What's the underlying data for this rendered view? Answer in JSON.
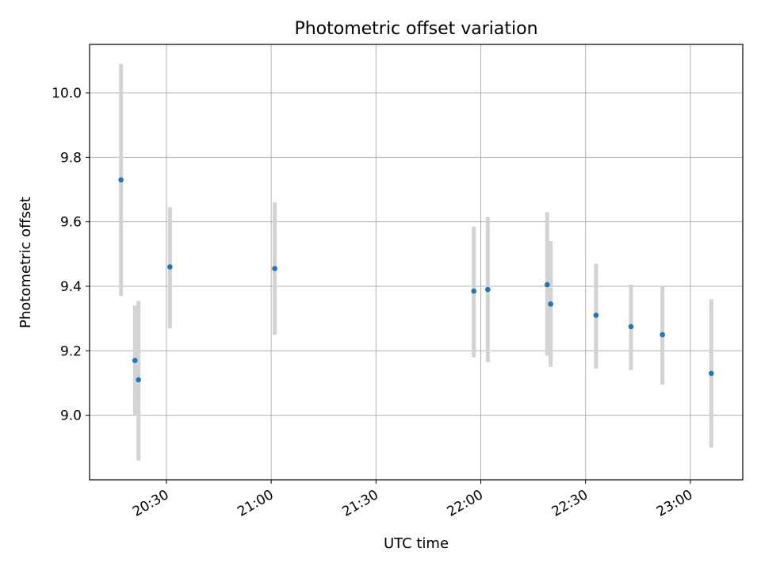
{
  "chart_data": {
    "type": "scatter",
    "title": "Photometric offset variation",
    "xlabel": "UTC time",
    "ylabel": "Photometric offset",
    "grid": true,
    "legend": "none",
    "xlim": [
      "20:08",
      "23:15"
    ],
    "ylim": [
      8.8,
      10.15
    ],
    "x_ticks": [
      "20:30",
      "21:00",
      "21:30",
      "22:00",
      "22:30",
      "23:00"
    ],
    "y_ticks": [
      "9.0",
      "9.2",
      "9.4",
      "9.6",
      "9.8",
      "10.0"
    ],
    "y_tick_values": [
      9.0,
      9.2,
      9.4,
      9.6,
      9.8,
      10.0
    ],
    "colors": {
      "marker": "#1f77b4",
      "errorbar": "#d3d3d3",
      "grid": "#b0b0b0"
    },
    "points": [
      {
        "x": "20:17",
        "y": 9.73,
        "ylow": 9.37,
        "yhigh": 10.09
      },
      {
        "x": "20:21",
        "y": 9.17,
        "ylow": 9.0,
        "yhigh": 9.34
      },
      {
        "x": "20:22",
        "y": 9.11,
        "ylow": 8.86,
        "yhigh": 9.355
      },
      {
        "x": "20:31",
        "y": 9.46,
        "ylow": 9.27,
        "yhigh": 9.645
      },
      {
        "x": "21:01",
        "y": 9.455,
        "ylow": 9.25,
        "yhigh": 9.66
      },
      {
        "x": "21:58",
        "y": 9.385,
        "ylow": 9.18,
        "yhigh": 9.585
      },
      {
        "x": "22:02",
        "y": 9.39,
        "ylow": 9.165,
        "yhigh": 9.615
      },
      {
        "x": "22:19",
        "y": 9.405,
        "ylow": 9.185,
        "yhigh": 9.63
      },
      {
        "x": "22:20",
        "y": 9.345,
        "ylow": 9.15,
        "yhigh": 9.54
      },
      {
        "x": "22:20",
        "y": 9.345,
        "ylow": 9.17,
        "yhigh": 9.52
      },
      {
        "x": "22:33",
        "y": 9.31,
        "ylow": 9.145,
        "yhigh": 9.47
      },
      {
        "x": "22:43",
        "y": 9.275,
        "ylow": 9.14,
        "yhigh": 9.405
      },
      {
        "x": "22:52",
        "y": 9.25,
        "ylow": 9.095,
        "yhigh": 9.4
      },
      {
        "x": "23:06",
        "y": 9.13,
        "ylow": 8.9,
        "yhigh": 9.36
      }
    ]
  }
}
